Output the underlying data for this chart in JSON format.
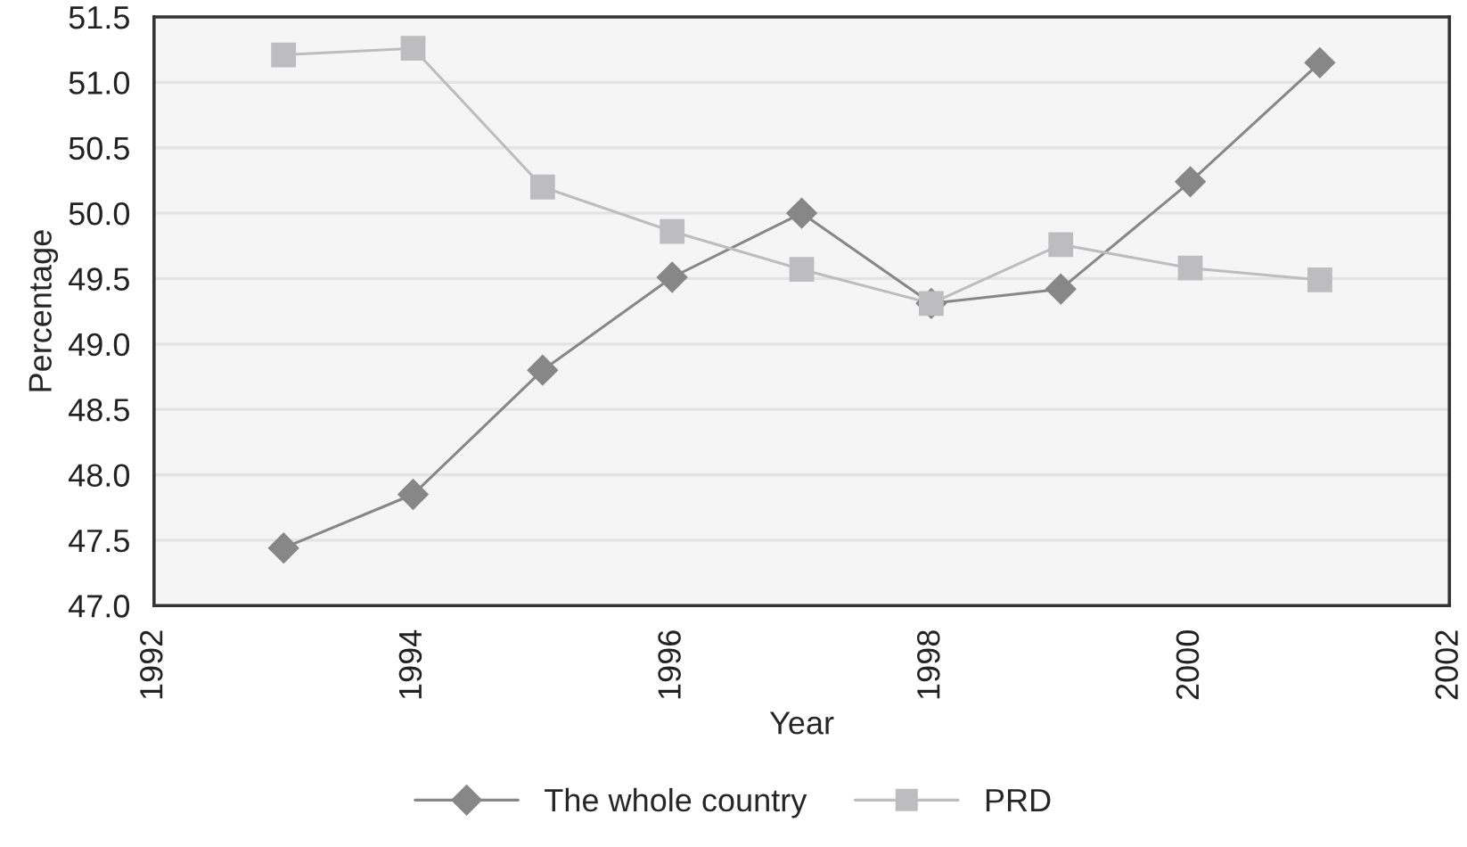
{
  "chart_data": {
    "type": "line",
    "xlabel": "Year",
    "ylabel": "Percentage",
    "x": [
      1993,
      1994,
      1995,
      1996,
      1997,
      1998,
      1999,
      2000,
      2001
    ],
    "series": [
      {
        "name": "The whole country",
        "color": "#878787",
        "marker": "diamond",
        "values": [
          47.44,
          47.85,
          48.8,
          49.51,
          50.0,
          49.31,
          49.42,
          50.24,
          51.15
        ]
      },
      {
        "name": "PRD",
        "color": "#bdbdbf",
        "marker": "square",
        "values": [
          51.21,
          51.26,
          50.2,
          49.86,
          49.57,
          49.31,
          49.76,
          49.58,
          49.49
        ]
      }
    ],
    "xlim": [
      1992,
      2002
    ],
    "xticks": [
      1992,
      1994,
      1996,
      1998,
      2000,
      2002
    ],
    "ylim": [
      47.0,
      51.5
    ],
    "yticks": [
      {
        "value": 47.0,
        "label": "47.0"
      },
      {
        "value": 47.5,
        "label": "47.5"
      },
      {
        "value": 48.0,
        "label": "48.0"
      },
      {
        "value": 48.5,
        "label": "48.5"
      },
      {
        "value": 49.0,
        "label": "49.0"
      },
      {
        "value": 49.5,
        "label": "49.5"
      },
      {
        "value": 50.0,
        "label": "50.0"
      },
      {
        "value": 50.5,
        "label": "50.5"
      },
      {
        "value": 51.0,
        "label": "51.0"
      },
      {
        "value": 51.5,
        "label": "51.5"
      }
    ],
    "grid": "y",
    "legend": "bottom",
    "line_style": "solid"
  }
}
